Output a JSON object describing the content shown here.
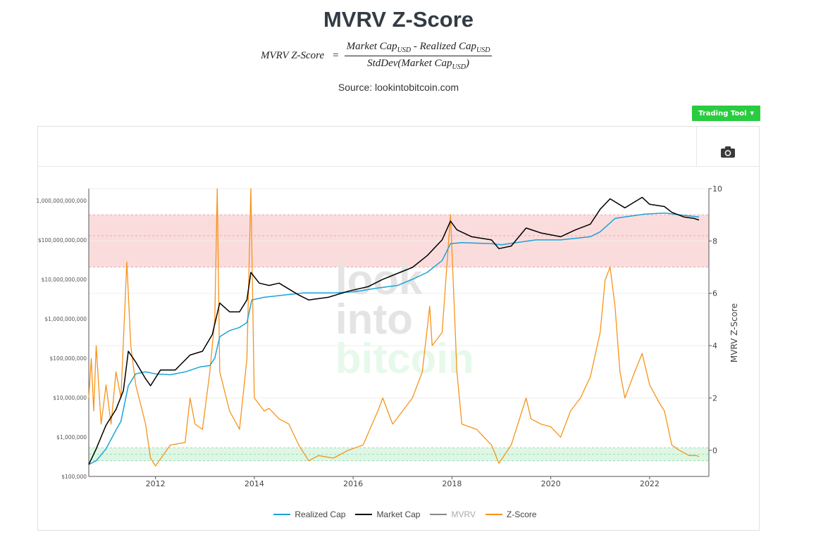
{
  "page": {
    "title": "MVRV Z-Score",
    "formula": {
      "lhs": "MVRV Z-Score",
      "eq": "=",
      "num_a": "Market Cap",
      "num_a_sub": "USD",
      "minus": " - ",
      "num_b": "Realized Cap",
      "num_b_sub": "USD",
      "den_pre": "StdDev(Market Cap",
      "den_sub": "USD",
      "den_post": ")"
    },
    "source": "Source: lookintobitcoin.com",
    "trading_tool_label": "Trading Tool",
    "watermark": [
      "look",
      "into",
      "bitcoin"
    ]
  },
  "colors": {
    "realized_cap": "#1aa3d9",
    "market_cap": "#000000",
    "mvrv": "#888888",
    "z_score": "#f7931a",
    "red_band": "#fbdcdc",
    "green_band": "#dcf7e4"
  },
  "legend": [
    {
      "label": "Realized Cap",
      "color": "#1aa3d9",
      "muted": false
    },
    {
      "label": "Market Cap",
      "color": "#000000",
      "muted": false
    },
    {
      "label": "MVRV",
      "color": "#888888",
      "muted": true
    },
    {
      "label": "Z-Score",
      "color": "#f7931a",
      "muted": false
    }
  ],
  "chart_data": {
    "type": "line",
    "title": "MVRV Z-Score",
    "xlim": [
      2010.65,
      2023.2
    ],
    "x_ticks": [
      "2012",
      "2014",
      "2016",
      "2018",
      "2020",
      "2022"
    ],
    "x_tick_values": [
      2012,
      2014,
      2016,
      2018,
      2020,
      2022
    ],
    "y_left": {
      "scale": "log",
      "range": [
        100000,
        2000000000000
      ],
      "tick_values": [
        100000,
        1000000,
        10000000,
        100000000,
        1000000000,
        10000000000,
        100000000000,
        1000000000000
      ],
      "tick_labels": [
        "$100,000",
        "$1,000,000",
        "$10,000,000",
        "$100,000,000",
        "$1,000,000,000",
        "$10,000,000,000",
        "$100,000,000,000",
        "1,000,000,000,000"
      ]
    },
    "y_right": {
      "label": "MVRV Z-Score",
      "range": [
        -1,
        10
      ],
      "tick_values": [
        0,
        2,
        4,
        6,
        8,
        10
      ],
      "tick_labels": [
        "0",
        "2",
        "4",
        "6",
        "8",
        "10"
      ]
    },
    "bands": [
      {
        "axis": "right",
        "from": 7,
        "to": 9,
        "color": "#fbdcdc",
        "mid": 8.2
      },
      {
        "axis": "right",
        "from": -0.4,
        "to": 0.1,
        "color": "#dcf7e4",
        "mid": -0.15
      }
    ],
    "grid": true,
    "legend_position": "bottom",
    "series": [
      {
        "name": "Realized Cap",
        "axis": "left",
        "points": [
          [
            2010.65,
            200000
          ],
          [
            2010.8,
            250000
          ],
          [
            2011.0,
            500000
          ],
          [
            2011.2,
            1500000
          ],
          [
            2011.3,
            2500000
          ],
          [
            2011.45,
            20000000
          ],
          [
            2011.6,
            40000000
          ],
          [
            2011.8,
            45000000
          ],
          [
            2012.0,
            40000000
          ],
          [
            2012.3,
            38000000
          ],
          [
            2012.6,
            45000000
          ],
          [
            2012.9,
            60000000
          ],
          [
            2013.1,
            65000000
          ],
          [
            2013.2,
            100000000
          ],
          [
            2013.3,
            350000000
          ],
          [
            2013.5,
            500000000
          ],
          [
            2013.7,
            600000000
          ],
          [
            2013.85,
            800000000
          ],
          [
            2013.95,
            3000000000
          ],
          [
            2014.2,
            3500000000
          ],
          [
            2014.6,
            4000000000
          ],
          [
            2015.0,
            4500000000
          ],
          [
            2015.6,
            4500000000
          ],
          [
            2016.0,
            4800000000
          ],
          [
            2016.5,
            6000000000
          ],
          [
            2016.9,
            7000000000
          ],
          [
            2017.2,
            10000000000
          ],
          [
            2017.5,
            15000000000
          ],
          [
            2017.8,
            30000000000
          ],
          [
            2017.97,
            80000000000
          ],
          [
            2018.2,
            85000000000
          ],
          [
            2018.8,
            80000000000
          ],
          [
            2019.0,
            75000000000
          ],
          [
            2019.3,
            85000000000
          ],
          [
            2019.7,
            100000000000
          ],
          [
            2020.2,
            100000000000
          ],
          [
            2020.8,
            120000000000
          ],
          [
            2021.0,
            160000000000
          ],
          [
            2021.3,
            350000000000
          ],
          [
            2021.6,
            400000000000
          ],
          [
            2021.9,
            450000000000
          ],
          [
            2022.3,
            480000000000
          ],
          [
            2022.7,
            420000000000
          ],
          [
            2023.0,
            380000000000
          ]
        ]
      },
      {
        "name": "Market Cap",
        "axis": "left",
        "points": [
          [
            2010.65,
            200000
          ],
          [
            2010.8,
            500000
          ],
          [
            2011.0,
            2000000
          ],
          [
            2011.2,
            5000000
          ],
          [
            2011.35,
            15000000
          ],
          [
            2011.45,
            150000000
          ],
          [
            2011.6,
            80000000
          ],
          [
            2011.8,
            30000000
          ],
          [
            2011.9,
            20000000
          ],
          [
            2012.1,
            50000000
          ],
          [
            2012.4,
            50000000
          ],
          [
            2012.7,
            120000000
          ],
          [
            2012.95,
            150000000
          ],
          [
            2013.15,
            400000000
          ],
          [
            2013.3,
            2500000000
          ],
          [
            2013.5,
            1500000000
          ],
          [
            2013.7,
            1500000000
          ],
          [
            2013.85,
            3000000000
          ],
          [
            2013.93,
            15000000000
          ],
          [
            2014.1,
            8000000000
          ],
          [
            2014.3,
            7000000000
          ],
          [
            2014.5,
            8000000000
          ],
          [
            2014.9,
            4000000000
          ],
          [
            2015.1,
            3000000000
          ],
          [
            2015.5,
            3500000000
          ],
          [
            2015.9,
            5000000000
          ],
          [
            2016.3,
            6500000000
          ],
          [
            2016.6,
            10000000000
          ],
          [
            2016.95,
            15000000000
          ],
          [
            2017.2,
            20000000000
          ],
          [
            2017.5,
            40000000000
          ],
          [
            2017.8,
            100000000000
          ],
          [
            2017.97,
            300000000000
          ],
          [
            2018.1,
            180000000000
          ],
          [
            2018.4,
            120000000000
          ],
          [
            2018.8,
            100000000000
          ],
          [
            2018.95,
            60000000000
          ],
          [
            2019.2,
            70000000000
          ],
          [
            2019.5,
            200000000000
          ],
          [
            2019.8,
            150000000000
          ],
          [
            2020.2,
            120000000000
          ],
          [
            2020.5,
            180000000000
          ],
          [
            2020.8,
            250000000000
          ],
          [
            2021.0,
            600000000000
          ],
          [
            2021.2,
            1100000000000
          ],
          [
            2021.5,
            650000000000
          ],
          [
            2021.85,
            1200000000000
          ],
          [
            2022.0,
            800000000000
          ],
          [
            2022.3,
            700000000000
          ],
          [
            2022.45,
            500000000000
          ],
          [
            2022.7,
            380000000000
          ],
          [
            2022.9,
            350000000000
          ],
          [
            2023.0,
            320000000000
          ]
        ]
      },
      {
        "name": "Z-Score",
        "axis": "right",
        "points": [
          [
            2010.65,
            2.0
          ],
          [
            2010.7,
            3.5
          ],
          [
            2010.75,
            1.5
          ],
          [
            2010.8,
            4.0
          ],
          [
            2010.9,
            1.0
          ],
          [
            2011.0,
            2.5
          ],
          [
            2011.1,
            1.0
          ],
          [
            2011.2,
            3.0
          ],
          [
            2011.3,
            2.0
          ],
          [
            2011.42,
            7.2
          ],
          [
            2011.5,
            4.0
          ],
          [
            2011.6,
            2.5
          ],
          [
            2011.8,
            1.0
          ],
          [
            2011.9,
            -0.3
          ],
          [
            2012.0,
            -0.6
          ],
          [
            2012.3,
            0.2
          ],
          [
            2012.6,
            0.3
          ],
          [
            2012.7,
            2.0
          ],
          [
            2012.8,
            1.0
          ],
          [
            2012.95,
            0.8
          ],
          [
            2013.1,
            3.0
          ],
          [
            2013.2,
            5.0
          ],
          [
            2013.25,
            10.0
          ],
          [
            2013.3,
            3.0
          ],
          [
            2013.5,
            1.5
          ],
          [
            2013.7,
            0.8
          ],
          [
            2013.85,
            3.5
          ],
          [
            2013.93,
            10.0
          ],
          [
            2014.0,
            2.0
          ],
          [
            2014.2,
            1.5
          ],
          [
            2014.3,
            1.6
          ],
          [
            2014.5,
            1.2
          ],
          [
            2014.7,
            1.0
          ],
          [
            2014.9,
            0.2
          ],
          [
            2015.1,
            -0.4
          ],
          [
            2015.3,
            -0.2
          ],
          [
            2015.6,
            -0.3
          ],
          [
            2015.9,
            0.0
          ],
          [
            2016.2,
            0.2
          ],
          [
            2016.5,
            1.5
          ],
          [
            2016.6,
            2.0
          ],
          [
            2016.8,
            1.0
          ],
          [
            2017.0,
            1.5
          ],
          [
            2017.2,
            2.0
          ],
          [
            2017.4,
            3.0
          ],
          [
            2017.55,
            5.5
          ],
          [
            2017.6,
            4.0
          ],
          [
            2017.8,
            4.5
          ],
          [
            2017.97,
            9.0
          ],
          [
            2018.1,
            3.0
          ],
          [
            2018.2,
            1.0
          ],
          [
            2018.5,
            0.8
          ],
          [
            2018.8,
            0.2
          ],
          [
            2018.95,
            -0.5
          ],
          [
            2019.2,
            0.2
          ],
          [
            2019.5,
            2.0
          ],
          [
            2019.6,
            1.2
          ],
          [
            2019.8,
            1.0
          ],
          [
            2020.0,
            0.9
          ],
          [
            2020.2,
            0.5
          ],
          [
            2020.4,
            1.5
          ],
          [
            2020.6,
            2.0
          ],
          [
            2020.8,
            2.8
          ],
          [
            2021.0,
            4.5
          ],
          [
            2021.1,
            6.5
          ],
          [
            2021.2,
            7.0
          ],
          [
            2021.3,
            5.5
          ],
          [
            2021.4,
            3.0
          ],
          [
            2021.5,
            2.0
          ],
          [
            2021.7,
            3.0
          ],
          [
            2021.85,
            3.7
          ],
          [
            2022.0,
            2.5
          ],
          [
            2022.2,
            1.8
          ],
          [
            2022.3,
            1.5
          ],
          [
            2022.45,
            0.2
          ],
          [
            2022.6,
            0.0
          ],
          [
            2022.8,
            -0.2
          ],
          [
            2022.95,
            -0.2
          ],
          [
            2023.0,
            -0.25
          ]
        ]
      }
    ]
  }
}
